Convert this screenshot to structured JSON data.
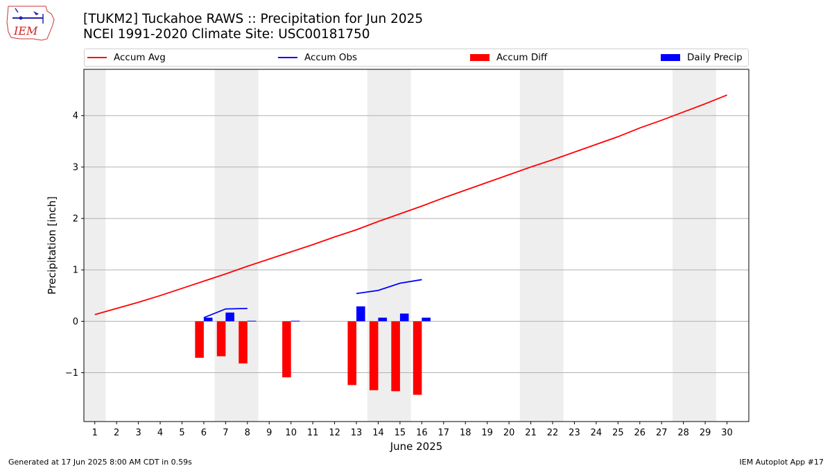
{
  "header": {
    "logo_text": "IEM",
    "title_line1": "[TUKM2] Tuckahoe RAWS :: Precipitation for Jun 2025",
    "title_line2": "NCEI 1991-2020 Climate Site: USC00181750"
  },
  "footer": {
    "left": "Generated at 17 Jun 2025 8:00 AM CDT in 0.59s",
    "right": "IEM Autoplot App #17"
  },
  "colors": {
    "accum_avg": "#ff0000",
    "accum_obs": "#0000ff",
    "accum_diff": "#ff0000",
    "daily_precip": "#0000ff",
    "weekend_shade": "#eeeeee",
    "grid": "#b0b0b0"
  },
  "chart_data": {
    "type": "bar",
    "xlabel": "June 2025",
    "ylabel": "Precipitation [inch]",
    "xlim": [
      0.5,
      31
    ],
    "ylim": [
      -1.95,
      4.9
    ],
    "yticks": [
      -1,
      0,
      1,
      2,
      3,
      4
    ],
    "ytick_labels": [
      "−1",
      "0",
      "1",
      "2",
      "3",
      "4"
    ],
    "xticks": [
      1,
      2,
      3,
      4,
      5,
      6,
      7,
      8,
      9,
      10,
      11,
      12,
      13,
      14,
      15,
      16,
      17,
      18,
      19,
      20,
      21,
      22,
      23,
      24,
      25,
      26,
      27,
      28,
      29,
      30
    ],
    "grid": "horizontal",
    "legend_position": "top",
    "weekend_spans": [
      [
        0.5,
        1.5
      ],
      [
        6.5,
        8.5
      ],
      [
        13.5,
        15.5
      ],
      [
        20.5,
        22.5
      ],
      [
        27.5,
        29.5
      ]
    ],
    "legend": [
      {
        "label": "Accum Avg",
        "kind": "line",
        "color": "#ff0000"
      },
      {
        "label": "Accum Obs",
        "kind": "line",
        "color": "#0000ff"
      },
      {
        "label": "Accum Diff",
        "kind": "bar",
        "color": "#ff0000"
      },
      {
        "label": "Daily Precip",
        "kind": "bar",
        "color": "#0000ff"
      }
    ],
    "series": [
      {
        "name": "Accum Avg",
        "type": "line",
        "x": [
          1,
          2,
          3,
          4,
          5,
          6,
          7,
          8,
          9,
          10,
          11,
          12,
          13,
          14,
          15,
          16,
          17,
          18,
          19,
          20,
          21,
          22,
          23,
          24,
          25,
          26,
          27,
          28,
          29,
          30
        ],
        "values": [
          0.13,
          0.25,
          0.37,
          0.5,
          0.64,
          0.78,
          0.92,
          1.07,
          1.21,
          1.35,
          1.49,
          1.64,
          1.78,
          1.94,
          2.09,
          2.24,
          2.4,
          2.55,
          2.7,
          2.85,
          3.0,
          3.14,
          3.29,
          3.44,
          3.59,
          3.76,
          3.91,
          4.07,
          4.23,
          4.4
        ]
      },
      {
        "name": "Accum Obs",
        "type": "line",
        "segments": [
          {
            "x": [
              6,
              7,
              8
            ],
            "values": [
              0.07,
              0.24,
              0.25
            ]
          },
          {
            "x": [
              13,
              14,
              15,
              16
            ],
            "values": [
              0.54,
              0.6,
              0.74,
              0.81
            ]
          }
        ]
      },
      {
        "name": "Accum Diff",
        "type": "bar",
        "x": [
          6,
          7,
          8,
          10,
          13,
          14,
          15,
          16
        ],
        "values": [
          -0.71,
          -0.68,
          -0.82,
          -1.09,
          -1.24,
          -1.34,
          -1.36,
          -1.43
        ]
      },
      {
        "name": "Daily Precip",
        "type": "bar",
        "x": [
          6,
          7,
          8,
          10,
          13,
          14,
          15,
          16
        ],
        "values": [
          0.07,
          0.17,
          0.01,
          0.01,
          0.29,
          0.07,
          0.15,
          0.07
        ]
      }
    ]
  }
}
